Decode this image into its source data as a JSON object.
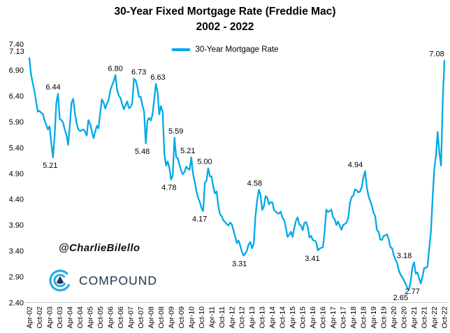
{
  "window": {
    "description": "Line chart image of 30-year fixed mortgage rates"
  },
  "title": {
    "line1": "30-Year Fixed Mortgage Rate (Freddie Mac)",
    "line2": "2002 - 2022"
  },
  "legend": {
    "label": "30-Year Mortgage Rate"
  },
  "watermark": "@CharlieBilello",
  "logo": {
    "text": "COMPOUND"
  },
  "colors": {
    "line": "#00A9E6",
    "logo_arc": "#29ABE2",
    "logo_mark": "#21354D",
    "logo_text": "#21354D",
    "axis_line": "#c9c9c9",
    "text": "#000000"
  },
  "chart_data": {
    "type": "line",
    "title": "30-Year Fixed Mortgage Rate (Freddie Mac)",
    "subtitle": "2002 - 2022",
    "legend_entries": [
      {
        "name": "30-Year Mortgage Rate",
        "color": "#00A9E6"
      }
    ],
    "legend_position": "top-center",
    "grid": false,
    "ylim": [
      2.4,
      7.4
    ],
    "y_tick_labels": [
      "7.40",
      "6.90",
      "6.40",
      "5.90",
      "5.40",
      "4.90",
      "4.40",
      "3.90",
      "3.40",
      "2.90",
      "2.40"
    ],
    "x_start": "Apr-2002",
    "x_end": "Oct-2022",
    "frequency": "monthly",
    "x_tick_every_n_points": 6,
    "x_tick_labels": [
      "Apr-02",
      "Oct-02",
      "Apr-03",
      "Oct-03",
      "Apr-04",
      "Oct-04",
      "Apr-05",
      "Oct-05",
      "Apr-06",
      "Oct-06",
      "Apr-07",
      "Oct-07",
      "Apr-08",
      "Oct-08",
      "Apr-09",
      "Oct-09",
      "Apr-10",
      "Oct-10",
      "Apr-11",
      "Oct-11",
      "Apr-12",
      "Oct-12",
      "Apr-13",
      "Oct-13",
      "Apr-14",
      "Oct-14",
      "Apr-15",
      "Oct-15",
      "Apr-16",
      "Oct-16",
      "Apr-17",
      "Oct-17",
      "Apr-18",
      "Oct-18",
      "Apr-19",
      "Oct-19",
      "Apr-20",
      "Oct-20",
      "Apr-21",
      "Oct-21",
      "Apr-22",
      "Oct-22"
    ],
    "values": [
      7.13,
      6.81,
      6.65,
      6.49,
      6.29,
      6.09,
      6.11,
      6.07,
      6.05,
      5.92,
      5.84,
      5.75,
      5.81,
      5.48,
      5.21,
      5.63,
      6.26,
      6.44,
      5.95,
      5.93,
      5.88,
      5.74,
      5.64,
      5.45,
      5.83,
      6.27,
      6.34,
      6.06,
      5.87,
      5.75,
      5.72,
      5.73,
      5.75,
      5.71,
      5.63,
      5.93,
      5.86,
      5.72,
      5.58,
      5.7,
      5.82,
      5.77,
      6.07,
      6.33,
      6.27,
      6.15,
      6.25,
      6.32,
      6.51,
      6.6,
      6.68,
      6.8,
      6.52,
      6.4,
      6.36,
      6.24,
      6.14,
      6.22,
      6.29,
      6.16,
      6.18,
      6.26,
      6.73,
      6.7,
      6.57,
      6.38,
      6.38,
      6.21,
      6.1,
      5.48,
      5.92,
      5.97,
      5.92,
      6.04,
      6.32,
      6.63,
      6.48,
      6.04,
      6.2,
      6.09,
      5.29,
      5.05,
      5.13,
      5.0,
      4.78,
      4.86,
      5.59,
      5.22,
      5.19,
      5.06,
      4.95,
      4.88,
      4.93,
      5.03,
      4.99,
      4.97,
      5.21,
      4.89,
      4.74,
      4.56,
      4.43,
      4.35,
      4.23,
      4.17,
      4.71,
      4.76,
      5.0,
      4.84,
      4.84,
      4.64,
      4.51,
      4.55,
      4.27,
      4.11,
      4.07,
      3.99,
      3.96,
      3.92,
      3.89,
      3.95,
      3.91,
      3.8,
      3.68,
      3.55,
      3.6,
      3.5,
      3.38,
      3.31,
      3.35,
      3.41,
      3.53,
      3.57,
      3.45,
      3.54,
      4.07,
      4.37,
      4.58,
      4.49,
      4.19,
      4.26,
      4.46,
      4.43,
      4.3,
      4.34,
      4.34,
      4.19,
      4.16,
      4.13,
      4.12,
      4.16,
      4.04,
      4.0,
      3.86,
      3.67,
      3.71,
      3.77,
      3.67,
      3.84,
      3.98,
      4.05,
      3.91,
      3.89,
      3.8,
      3.94,
      3.96,
      3.87,
      3.66,
      3.69,
      3.61,
      3.6,
      3.57,
      3.41,
      3.44,
      3.46,
      3.47,
      3.77,
      4.2,
      4.15,
      4.17,
      4.2,
      4.05,
      4.01,
      3.9,
      3.97,
      3.88,
      3.81,
      3.9,
      3.92,
      3.95,
      4.03,
      4.33,
      4.44,
      4.47,
      4.59,
      4.57,
      4.53,
      4.55,
      4.63,
      4.83,
      4.94,
      4.64,
      4.46,
      4.37,
      4.27,
      4.14,
      4.07,
      3.8,
      3.77,
      3.62,
      3.61,
      3.69,
      3.7,
      3.72,
      3.62,
      3.47,
      3.45,
      3.31,
      3.23,
      3.16,
      3.02,
      2.94,
      2.89,
      2.83,
      2.77,
      2.68,
      2.65,
      2.81,
      3.08,
      3.18,
      2.96,
      2.98,
      2.87,
      2.77,
      2.9,
      3.07,
      3.07,
      3.1,
      3.45,
      3.76,
      4.42,
      4.98,
      5.25,
      5.7,
      5.3,
      5.05,
      6.29,
      7.08
    ],
    "annotations": [
      {
        "text": "7.13",
        "index": 0,
        "value": 7.13,
        "placement": "above",
        "dx": -18
      },
      {
        "text": "5.21",
        "index": 14,
        "value": 5.21,
        "placement": "below",
        "dx": -4
      },
      {
        "text": "6.44",
        "index": 17,
        "value": 6.44,
        "placement": "above",
        "dx": -7
      },
      {
        "text": "6.80",
        "index": 51,
        "value": 6.8,
        "placement": "above",
        "dx": 0
      },
      {
        "text": "6.73",
        "index": 62,
        "value": 6.73,
        "placement": "above",
        "dx": 7
      },
      {
        "text": "5.48",
        "index": 69,
        "value": 5.48,
        "placement": "below",
        "dx": -5
      },
      {
        "text": "6.63",
        "index": 75,
        "value": 6.63,
        "placement": "above",
        "dx": 3
      },
      {
        "text": "4.78",
        "index": 84,
        "value": 4.78,
        "placement": "below",
        "dx": -3
      },
      {
        "text": "5.59",
        "index": 86,
        "value": 5.59,
        "placement": "above",
        "dx": 2
      },
      {
        "text": "5.21",
        "index": 96,
        "value": 5.21,
        "placement": "above",
        "dx": -5
      },
      {
        "text": "4.17",
        "index": 103,
        "value": 4.17,
        "placement": "below",
        "dx": -5
      },
      {
        "text": "5.00",
        "index": 106,
        "value": 5.0,
        "placement": "above",
        "dx": -5
      },
      {
        "text": "3.31",
        "index": 127,
        "value": 3.31,
        "placement": "below",
        "dx": -6
      },
      {
        "text": "4.58",
        "index": 136,
        "value": 4.58,
        "placement": "above",
        "dx": -6
      },
      {
        "text": "3.41",
        "index": 171,
        "value": 3.41,
        "placement": "below",
        "dx": -8
      },
      {
        "text": "4.94",
        "index": 199,
        "value": 4.94,
        "placement": "above",
        "dx": -14
      },
      {
        "text": "2.65",
        "index": 225,
        "value": 2.65,
        "placement": "below",
        "dx": -12
      },
      {
        "text": "3.18",
        "index": 228,
        "value": 3.18,
        "placement": "above",
        "dx": -14
      },
      {
        "text": "2.77",
        "index": 232,
        "value": 2.77,
        "placement": "below",
        "dx": -12
      },
      {
        "text": "7.08",
        "index": 246,
        "value": 7.08,
        "placement": "above",
        "dx": -11
      }
    ]
  }
}
